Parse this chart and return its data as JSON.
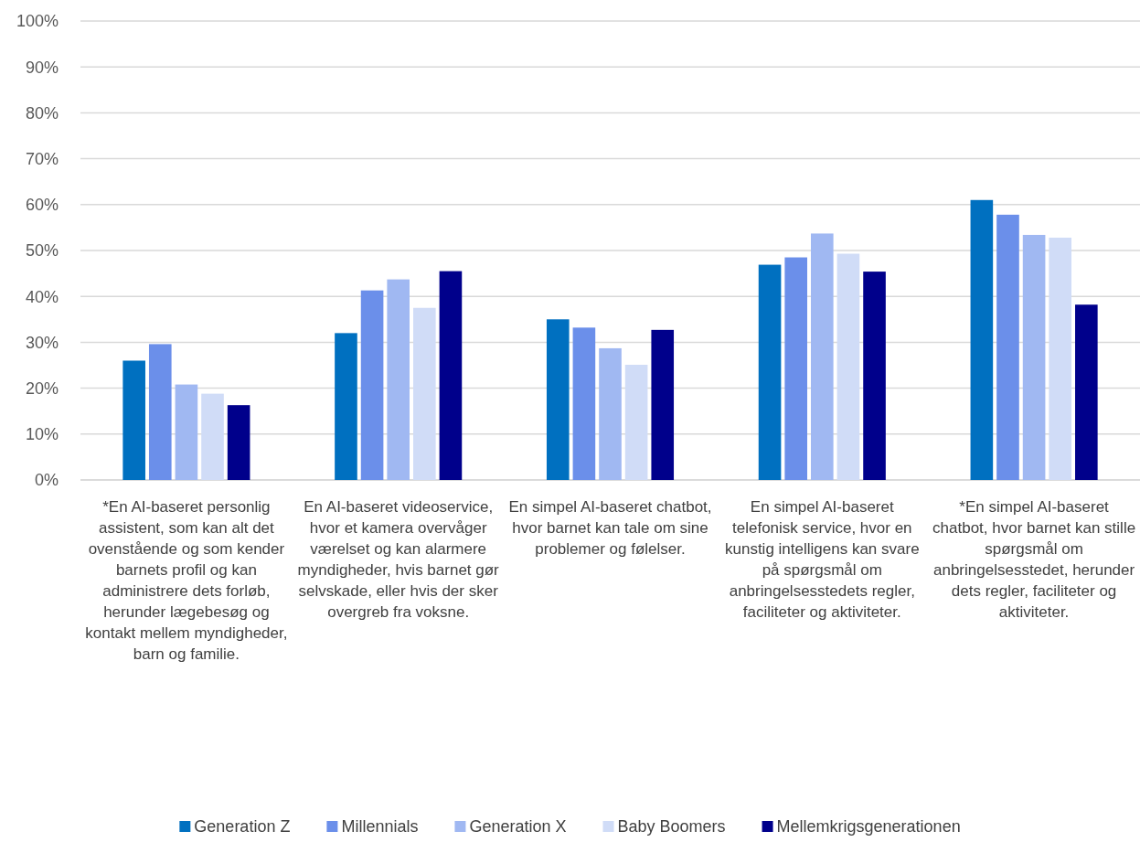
{
  "chart_data": {
    "type": "bar",
    "categories": [
      "*En AI-baseret personlig assistent, som kan alt det ovenstående og som kender barnets profil og kan administrere dets forløb, herunder lægebesøg og kontakt mellem myndigheder, barn og familie.",
      "En AI-baseret videoservice, hvor et kamera overvåger værelset og kan alarmere myndigheder, hvis barnet gør selvskade, eller hvis der sker overgreb fra voksne.",
      "En simpel AI-baseret chatbot, hvor barnet kan tale om sine problemer og følelser.",
      "En simpel AI-baseret telefonisk service, hvor en kunstig intelligens kan svare på spørgsmål om anbringelsesstedets regler, faciliteter og aktiviteter.",
      "*En simpel AI-baseret chatbot, hvor barnet kan stille spørgsmål om anbringelsesstedet, herunder dets regler, faciliteter og aktiviteter."
    ],
    "series": [
      {
        "name": "Generation Z",
        "color": "#0070c0",
        "values": [
          26.0,
          32.0,
          35.0,
          46.9,
          61.0
        ]
      },
      {
        "name": "Millennials",
        "color": "#6b8fea",
        "values": [
          29.6,
          41.3,
          33.2,
          48.5,
          57.8
        ]
      },
      {
        "name": "Generation X",
        "color": "#a0b8f2",
        "values": [
          20.8,
          43.7,
          28.7,
          53.7,
          53.4
        ]
      },
      {
        "name": "Baby Boomers",
        "color": "#d0dcf7",
        "values": [
          18.8,
          37.5,
          25.1,
          49.3,
          52.8
        ]
      },
      {
        "name": "Mellemkrigsgenerationen",
        "color": "#00008b",
        "values": [
          16.3,
          45.5,
          32.7,
          45.4,
          38.2
        ]
      }
    ],
    "ylim": [
      0,
      100
    ],
    "yticks": [
      {
        "value": 0,
        "label": "0%"
      },
      {
        "value": 10,
        "label": "10%"
      },
      {
        "value": 20,
        "label": "20%"
      },
      {
        "value": 30,
        "label": "30%"
      },
      {
        "value": 40,
        "label": "40%"
      },
      {
        "value": 50,
        "label": "50%"
      },
      {
        "value": 60,
        "label": "60%"
      },
      {
        "value": 70,
        "label": "70%"
      },
      {
        "value": 80,
        "label": "80%"
      },
      {
        "value": 90,
        "label": "90%"
      },
      {
        "value": 100,
        "label": "100%"
      }
    ],
    "grid": "y",
    "legend": "bottom"
  }
}
